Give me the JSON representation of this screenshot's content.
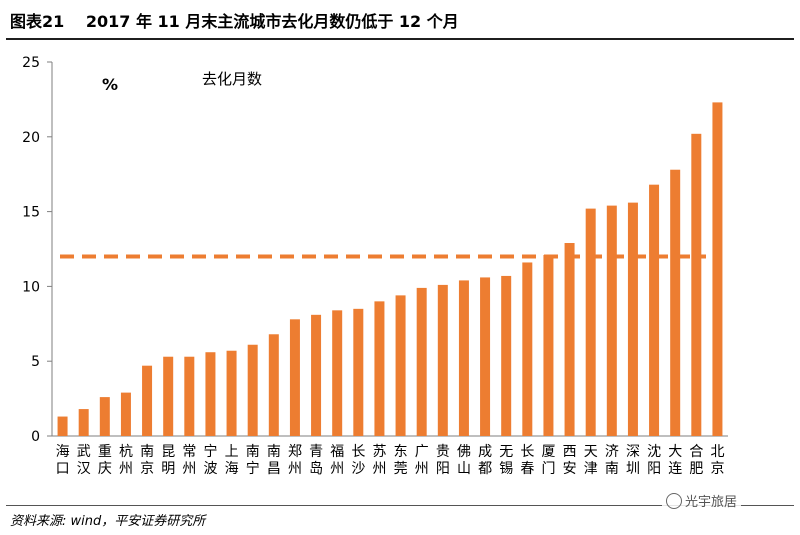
{
  "header": {
    "title": "图表21　 2017 年 11 月末主流城市去化月数仍低于 12 个月"
  },
  "footer": {
    "source": "资料来源: wind，平安证券研究所",
    "watermark": "光宇旅居"
  },
  "chart_data": {
    "type": "bar",
    "unit_label": "%",
    "series_label": "去化月数",
    "categories": [
      "海口",
      "武汉",
      "重庆",
      "杭州",
      "南京",
      "昆明",
      "常州",
      "宁波",
      "上海",
      "南宁",
      "南昌",
      "郑州",
      "青岛",
      "福州",
      "长沙",
      "苏州",
      "东莞",
      "广州",
      "贵阳",
      "佛山",
      "成都",
      "无锡",
      "长春",
      "厦门",
      "西安",
      "天津",
      "济南",
      "深圳",
      "沈阳",
      "大连",
      "合肥",
      "北京"
    ],
    "values": [
      1.3,
      1.8,
      2.6,
      2.9,
      4.7,
      5.3,
      5.3,
      5.6,
      5.7,
      6.1,
      6.8,
      7.8,
      8.1,
      8.4,
      8.5,
      9.0,
      9.4,
      9.9,
      10.1,
      10.4,
      10.6,
      10.7,
      11.6,
      12.1,
      12.9,
      15.2,
      15.4,
      15.6,
      16.8,
      17.8,
      20.2,
      22.3
    ],
    "reference_line": 12,
    "ylim": [
      0,
      25
    ],
    "yticks": [
      0,
      5,
      10,
      15,
      20,
      25
    ],
    "bar_color": "#ED7D31",
    "reference_color": "#ED7D31"
  }
}
